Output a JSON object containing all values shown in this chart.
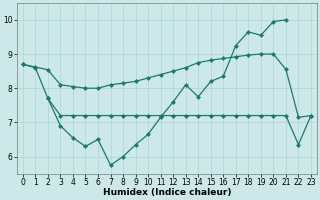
{
  "xlabel": "Humidex (Indice chaleur)",
  "xlim": [
    -0.5,
    23.5
  ],
  "ylim": [
    5.5,
    10.5
  ],
  "yticks": [
    6,
    7,
    8,
    9,
    10
  ],
  "xticks": [
    0,
    1,
    2,
    3,
    4,
    5,
    6,
    7,
    8,
    9,
    10,
    11,
    12,
    13,
    14,
    15,
    16,
    17,
    18,
    19,
    20,
    21,
    22,
    23
  ],
  "background_color": "#cce8e8",
  "grid_color": "#aad4d4",
  "line_color": "#1a7a6e",
  "line1_x": [
    0,
    1,
    2,
    3,
    4,
    5,
    6,
    7,
    8,
    9,
    10,
    11,
    12,
    13,
    14,
    15,
    16,
    17,
    18,
    19,
    20,
    21
  ],
  "line1_y": [
    8.7,
    8.6,
    7.7,
    6.9,
    6.55,
    6.3,
    6.5,
    5.75,
    6.0,
    6.35,
    6.65,
    7.15,
    7.6,
    8.1,
    7.75,
    8.2,
    8.35,
    9.25,
    9.65,
    9.55,
    9.95,
    10.0
  ],
  "line2_x": [
    2,
    3,
    4,
    5,
    6,
    7,
    8,
    9,
    10,
    11,
    12,
    13,
    14,
    15,
    16,
    17,
    18,
    19,
    20,
    21,
    22,
    23
  ],
  "line2_y": [
    7.7,
    7.2,
    7.2,
    7.2,
    7.2,
    7.2,
    7.2,
    7.2,
    7.2,
    7.2,
    7.2,
    7.2,
    7.2,
    7.2,
    7.2,
    7.2,
    7.2,
    7.2,
    7.2,
    7.2,
    6.35,
    7.2
  ],
  "line3_x": [
    0,
    1,
    2,
    3,
    4,
    5,
    6,
    7,
    8,
    9,
    10,
    11,
    12,
    13,
    14,
    15,
    16,
    17,
    18,
    19,
    20,
    21,
    22,
    23
  ],
  "line3_y": [
    8.7,
    8.62,
    8.54,
    8.1,
    8.05,
    8.0,
    8.0,
    8.1,
    8.15,
    8.2,
    8.3,
    8.4,
    8.5,
    8.6,
    8.75,
    8.82,
    8.87,
    8.92,
    8.97,
    9.0,
    9.0,
    8.55,
    7.15,
    7.2
  ],
  "markersize": 2.5,
  "linewidth": 0.9,
  "tick_fontsize": 5.5,
  "xlabel_fontsize": 6.5
}
